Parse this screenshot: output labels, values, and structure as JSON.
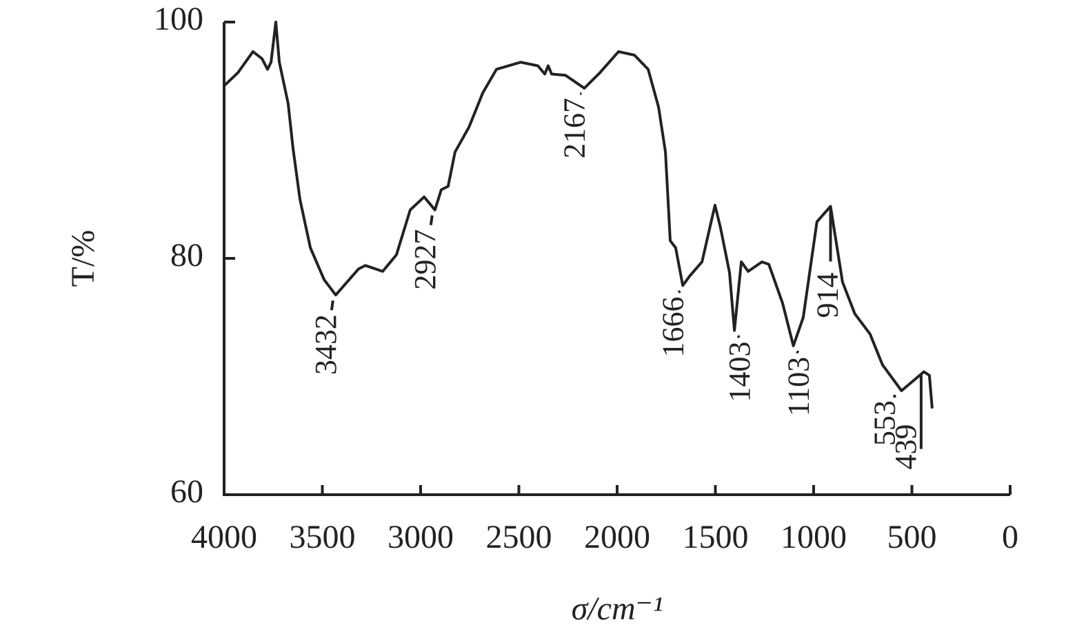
{
  "chart_data": {
    "type": "line",
    "xlabel": "σ/cm⁻¹",
    "ylabel": "T/%",
    "xlim": [
      4000,
      0
    ],
    "ylim": [
      60,
      100
    ],
    "xticks": [
      4000,
      3500,
      3000,
      2500,
      2000,
      1500,
      1000,
      500,
      0
    ],
    "yticks": [
      60,
      80,
      100
    ],
    "series": [
      {
        "color": "#222222",
        "x": [
          4000,
          3930,
          3853,
          3807,
          3779,
          3761,
          3737,
          3719,
          3674,
          3649,
          3614,
          3561,
          3491,
          3432,
          3316,
          3281,
          3193,
          3123,
          3053,
          2982,
          2947,
          2927,
          2895,
          2860,
          2825,
          2754,
          2684,
          2614,
          2491,
          2403,
          2368,
          2351,
          2333,
          2263,
          2167,
          2088,
          1993,
          1912,
          1842,
          1789,
          1754,
          1730,
          1702,
          1666,
          1631,
          1568,
          1502,
          1474,
          1428,
          1403,
          1368,
          1333,
          1263,
          1228,
          1158,
          1103,
          1053,
          983,
          914,
          853,
          790,
          713,
          650,
          553,
          439,
          411,
          397
        ],
        "values": [
          94.6,
          95.7,
          97.5,
          96.9,
          96.0,
          96.6,
          100,
          96.6,
          93.1,
          89.3,
          85.0,
          80.9,
          78.2,
          76.9,
          79.1,
          79.4,
          78.9,
          80.3,
          84.1,
          85.2,
          84.5,
          84.1,
          85.8,
          86.1,
          89.0,
          91.1,
          94.0,
          96.0,
          96.6,
          96.3,
          95.6,
          96.3,
          95.6,
          95.5,
          94.4,
          95.7,
          97.5,
          97.2,
          96.0,
          92.8,
          89.0,
          81.5,
          80.9,
          77.7,
          78.5,
          79.7,
          84.5,
          82.6,
          78.8,
          73.9,
          79.7,
          78.9,
          79.7,
          79.5,
          76.2,
          72.6,
          75.0,
          83.1,
          84.4,
          78.0,
          75.3,
          73.6,
          71.0,
          68.8,
          70.4,
          70.1,
          67.3
        ]
      }
    ],
    "annotations": [
      {
        "text": "3432",
        "x": 3432,
        "y": 76.9
      },
      {
        "text": "2927",
        "x": 2927,
        "y": 84.1
      },
      {
        "text": "2167",
        "x": 2167,
        "y": 94.4
      },
      {
        "text": "1666",
        "x": 1666,
        "y": 77.7
      },
      {
        "text": "1403",
        "x": 1403,
        "y": 73.9
      },
      {
        "text": "1103",
        "x": 1103,
        "y": 72.6
      },
      {
        "text": "914",
        "x": 914,
        "y": 84.4
      },
      {
        "text": "553",
        "x": 553,
        "y": 68.8
      },
      {
        "text": "439",
        "x": 439,
        "y": 70.4
      }
    ]
  }
}
